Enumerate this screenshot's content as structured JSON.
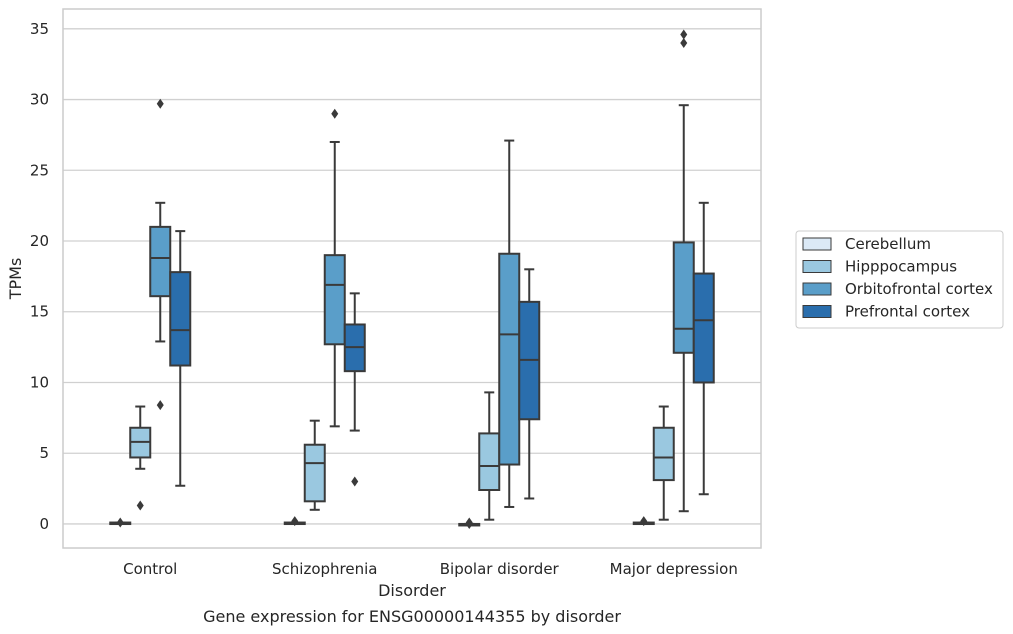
{
  "chart_data": {
    "type": "box",
    "xlabel": "Disorder",
    "ylabel": "TPMs",
    "caption": "Gene expression for ENSG00000144355 by disorder",
    "ylim": [
      -1.7,
      36.4
    ],
    "yticks": [
      0,
      5,
      10,
      15,
      20,
      25,
      30,
      35
    ],
    "grid": "horizontal",
    "legend_position": "right",
    "categories": [
      "Control",
      "Schizophrenia",
      "Bipolar disorder",
      "Major depression"
    ],
    "series": [
      {
        "name": "Cerebellum",
        "color": "#dbe9f6",
        "boxes": [
          {
            "whisker_low": 0.0,
            "q1": 0.0,
            "median": 0.05,
            "q3": 0.1,
            "whisker_high": 0.1,
            "outliers": [
              0.1
            ]
          },
          {
            "whisker_low": 0.0,
            "q1": 0.0,
            "median": 0.05,
            "q3": 0.1,
            "whisker_high": 0.1,
            "outliers": [
              0.2
            ]
          },
          {
            "whisker_low": 0.0,
            "q1": 0.0,
            "median": 0.0,
            "q3": 0.0,
            "whisker_high": 0.0,
            "outliers": [
              0.1,
              0.0
            ]
          },
          {
            "whisker_low": 0.0,
            "q1": 0.0,
            "median": 0.05,
            "q3": 0.1,
            "whisker_high": 0.1,
            "outliers": [
              0.2
            ]
          }
        ]
      },
      {
        "name": "Hipppocampus",
        "color": "#9ac8e0",
        "boxes": [
          {
            "whisker_low": 3.9,
            "q1": 4.7,
            "median": 5.8,
            "q3": 6.8,
            "whisker_high": 8.3,
            "outliers": [
              1.3
            ]
          },
          {
            "whisker_low": 1.0,
            "q1": 1.6,
            "median": 4.3,
            "q3": 5.6,
            "whisker_high": 7.3,
            "outliers": []
          },
          {
            "whisker_low": 0.3,
            "q1": 2.4,
            "median": 4.1,
            "q3": 6.4,
            "whisker_high": 9.3,
            "outliers": []
          },
          {
            "whisker_low": 0.3,
            "q1": 3.1,
            "median": 4.7,
            "q3": 6.8,
            "whisker_high": 8.3,
            "outliers": []
          }
        ]
      },
      {
        "name": "Orbitofrontal cortex",
        "color": "#5a9ec9",
        "boxes": [
          {
            "whisker_low": 12.9,
            "q1": 16.1,
            "median": 18.8,
            "q3": 21.0,
            "whisker_high": 22.7,
            "outliers": [
              29.7,
              8.4
            ]
          },
          {
            "whisker_low": 6.9,
            "q1": 12.7,
            "median": 16.9,
            "q3": 19.0,
            "whisker_high": 27.0,
            "outliers": [
              29.0
            ]
          },
          {
            "whisker_low": 1.2,
            "q1": 4.2,
            "median": 13.4,
            "q3": 19.1,
            "whisker_high": 27.1,
            "outliers": []
          },
          {
            "whisker_low": 0.9,
            "q1": 12.1,
            "median": 13.8,
            "q3": 19.9,
            "whisker_high": 29.6,
            "outliers": [
              34.6,
              34.0
            ]
          }
        ]
      },
      {
        "name": "Prefrontal cortex",
        "color": "#2a6ead",
        "boxes": [
          {
            "whisker_low": 2.7,
            "q1": 11.2,
            "median": 13.7,
            "q3": 17.8,
            "whisker_high": 20.7,
            "outliers": []
          },
          {
            "whisker_low": 6.6,
            "q1": 10.8,
            "median": 12.5,
            "q3": 14.1,
            "whisker_high": 16.3,
            "outliers": [
              3.0
            ]
          },
          {
            "whisker_low": 1.8,
            "q1": 7.4,
            "median": 11.6,
            "q3": 15.7,
            "whisker_high": 18.0,
            "outliers": []
          },
          {
            "whisker_low": 2.1,
            "q1": 10.0,
            "median": 14.4,
            "q3": 17.7,
            "whisker_high": 22.7,
            "outliers": []
          }
        ]
      }
    ]
  }
}
